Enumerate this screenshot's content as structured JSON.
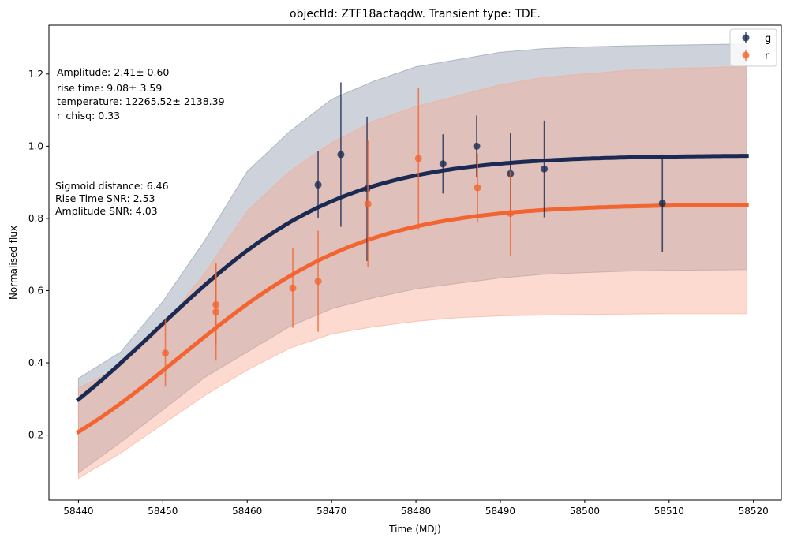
{
  "chart_data": {
    "type": "scatter",
    "title": "objectId: ZTF18actaqdw. Transient type: TDE.",
    "xlabel": "Time (MDJ)",
    "ylabel": "Normalised flux",
    "xlim": [
      58436.5,
      58523.3
    ],
    "ylim": [
      0.02,
      1.335
    ],
    "xticks": [
      58440,
      58450,
      58460,
      58470,
      58480,
      58490,
      58500,
      58510,
      58520
    ],
    "yticks": [
      0.2,
      0.4,
      0.6,
      0.8,
      1.0,
      1.2
    ],
    "xtick_labels": [
      "58440",
      "58450",
      "58460",
      "58470",
      "58480",
      "58490",
      "58500",
      "58510",
      "58520"
    ],
    "ytick_labels": [
      "0.2",
      "0.4",
      "0.6",
      "0.8",
      "1.0",
      "1.2"
    ],
    "grid": false,
    "legend_position": "top-right",
    "series": [
      {
        "name": "g",
        "color": "#1a2a52",
        "band_color": "#8a96aa",
        "fit": {
          "x0": 58440,
          "x1": 58519.2,
          "L": 0.975,
          "k": 0.0904,
          "t0": 58449.05
        },
        "band_upper": [
          [
            58440,
            0.357
          ],
          [
            58445,
            0.43
          ],
          [
            58450,
            0.57
          ],
          [
            58455,
            0.74
          ],
          [
            58460,
            0.93
          ],
          [
            58465,
            1.04
          ],
          [
            58470,
            1.13
          ],
          [
            58475,
            1.18
          ],
          [
            58480,
            1.22
          ],
          [
            58485,
            1.24
          ],
          [
            58490,
            1.26
          ],
          [
            58495,
            1.27
          ],
          [
            58500,
            1.275
          ],
          [
            58505,
            1.278
          ],
          [
            58510,
            1.28
          ],
          [
            58519.2,
            1.283
          ]
        ],
        "points": [
          {
            "x": 58468.4,
            "y": 0.893,
            "err": 0.093
          },
          {
            "x": 58471.1,
            "y": 0.977,
            "err": 0.2
          },
          {
            "x": 58474.2,
            "y": 0.882,
            "err": 0.2
          },
          {
            "x": 58483.2,
            "y": 0.951,
            "err": 0.082
          },
          {
            "x": 58487.2,
            "y": 1.0,
            "err": 0.085
          },
          {
            "x": 58491.2,
            "y": 0.924,
            "err": 0.113
          },
          {
            "x": 58495.2,
            "y": 0.937,
            "err": 0.134
          },
          {
            "x": 58509.2,
            "y": 0.842,
            "err": 0.135
          }
        ]
      },
      {
        "name": "r",
        "color": "#f26430",
        "band_color": "#f9a88e",
        "fit": {
          "x0": 58440,
          "x1": 58519.2,
          "L": 0.84,
          "k": 0.0907,
          "t0": 58452.2
        },
        "band_lower": [
          [
            58440,
            0.08
          ],
          [
            58445,
            0.15
          ],
          [
            58450,
            0.23
          ],
          [
            58455,
            0.31
          ],
          [
            58460,
            0.38
          ],
          [
            58465,
            0.44
          ],
          [
            58470,
            0.48
          ],
          [
            58475,
            0.5
          ],
          [
            58480,
            0.515
          ],
          [
            58485,
            0.525
          ],
          [
            58490,
            0.53
          ],
          [
            58495,
            0.532
          ],
          [
            58500,
            0.534
          ],
          [
            58505,
            0.535
          ],
          [
            58510,
            0.536
          ],
          [
            58519.2,
            0.536
          ]
        ],
        "points": [
          {
            "x": 58450.3,
            "y": 0.427,
            "err": 0.093
          },
          {
            "x": 58456.3,
            "y": 0.561,
            "err": 0.113
          },
          {
            "x": 58456.3,
            "y": 0.541,
            "err": 0.135
          },
          {
            "x": 58465.4,
            "y": 0.607,
            "err": 0.11
          },
          {
            "x": 58468.4,
            "y": 0.626,
            "err": 0.14
          },
          {
            "x": 58474.3,
            "y": 0.84,
            "err": 0.175
          },
          {
            "x": 58480.3,
            "y": 0.966,
            "err": 0.196
          },
          {
            "x": 58487.3,
            "y": 0.885,
            "err": 0.095
          },
          {
            "x": 58491.2,
            "y": 0.814,
            "err": 0.118
          }
        ]
      }
    ],
    "overlap_band": {
      "color": "#c9a7a6",
      "upper": [
        [
          58440,
          0.33
        ],
        [
          58445,
          0.39
        ],
        [
          58450,
          0.5
        ],
        [
          58455,
          0.65
        ],
        [
          58460,
          0.82
        ],
        [
          58465,
          0.93
        ],
        [
          58470,
          1.01
        ],
        [
          58475,
          1.07
        ],
        [
          58480,
          1.11
        ],
        [
          58485,
          1.14
        ],
        [
          58490,
          1.17
        ],
        [
          58495,
          1.19
        ],
        [
          58500,
          1.2
        ],
        [
          58505,
          1.21
        ],
        [
          58510,
          1.215
        ],
        [
          58519.2,
          1.22
        ]
      ],
      "lower": [
        [
          58440,
          0.095
        ],
        [
          58445,
          0.18
        ],
        [
          58450,
          0.27
        ],
        [
          58455,
          0.36
        ],
        [
          58460,
          0.43
        ],
        [
          58465,
          0.5
        ],
        [
          58470,
          0.55
        ],
        [
          58475,
          0.58
        ],
        [
          58480,
          0.605
        ],
        [
          58485,
          0.62
        ],
        [
          58490,
          0.635
        ],
        [
          58495,
          0.645
        ],
        [
          58500,
          0.65
        ],
        [
          58505,
          0.654
        ],
        [
          58510,
          0.656
        ],
        [
          58519.2,
          0.658
        ]
      ]
    },
    "annotations": {
      "block1": [
        "Amplitude: 2.41± 0.60",
        "rise time: 9.08± 3.59",
        "temperature: 12265.52± 2138.39",
        "r_chisq: 0.33"
      ],
      "block2": [
        "Sigmoid distance: 6.46",
        "Rise Time SNR: 2.53",
        "Amplitude SNR: 4.03"
      ]
    }
  }
}
